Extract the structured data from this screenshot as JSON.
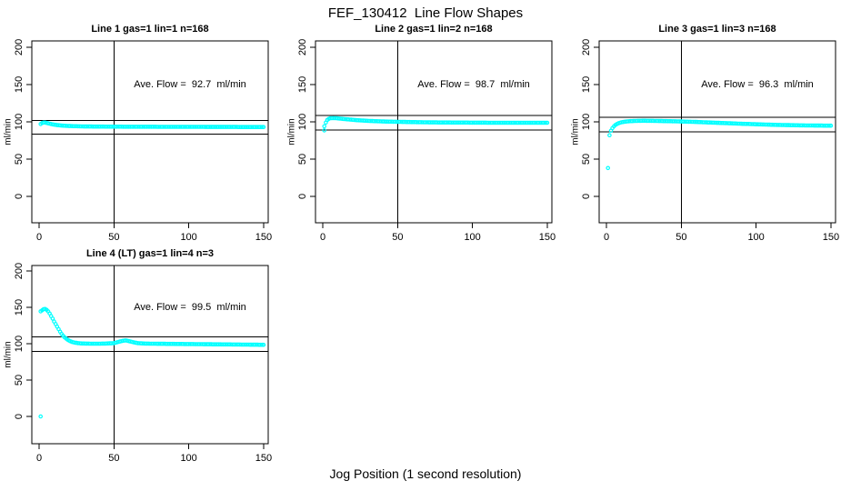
{
  "title": "FEF_130412  Line Flow Shapes",
  "xlabel": "Jog Position (1 second resolution)",
  "colors": {
    "points": "#00FFFF",
    "axis": "#000000",
    "background": "#FFFFFF"
  },
  "chart_data": [
    {
      "type": "scatter",
      "title": "Line 1 gas=1 lin=1 n=168",
      "annotation": "Ave. Flow =  92.7  ml/min",
      "ave_flow_ml_min": 92.7,
      "ylabel": "ml/min",
      "x_ticks": [
        0,
        50,
        100,
        150
      ],
      "y_ticks": [
        0,
        50,
        100,
        150,
        200
      ],
      "xlim": [
        -4.9,
        153.1
      ],
      "ylim": [
        -35.4,
        208.5
      ],
      "grid": false,
      "vline_x": 50,
      "hlines": [
        102.0,
        83.4
      ],
      "point_color": "#00FFFF",
      "points": [
        [
          1,
          97
        ],
        [
          2,
          98.5
        ],
        [
          3,
          99
        ],
        [
          4,
          99
        ],
        [
          5,
          98.5
        ],
        [
          6,
          98
        ],
        [
          8,
          97
        ],
        [
          10,
          96.2
        ],
        [
          12,
          95.6
        ],
        [
          15,
          95
        ],
        [
          18,
          94.6
        ],
        [
          22,
          94.2
        ],
        [
          26,
          94
        ],
        [
          30,
          93.8
        ],
        [
          35,
          93.7
        ],
        [
          40,
          93.6
        ],
        [
          50,
          93.5
        ],
        [
          60,
          93.4
        ],
        [
          70,
          93.4
        ],
        [
          80,
          93.3
        ],
        [
          90,
          93.3
        ],
        [
          100,
          93.2
        ],
        [
          110,
          93.2
        ],
        [
          120,
          93.1
        ],
        [
          130,
          93.1
        ],
        [
          140,
          93
        ],
        [
          150,
          93
        ]
      ],
      "extra_points": []
    },
    {
      "type": "scatter",
      "title": "Line 2 gas=1 lin=2 n=168",
      "annotation": "Ave. Flow =  98.7  ml/min",
      "ave_flow_ml_min": 98.7,
      "ylabel": "ml/min",
      "x_ticks": [
        0,
        50,
        100,
        150
      ],
      "y_ticks": [
        0,
        50,
        100,
        150,
        200
      ],
      "xlim": [
        -4.9,
        153.1
      ],
      "ylim": [
        -35.4,
        208.5
      ],
      "grid": false,
      "vline_x": 50,
      "hlines": [
        108.6,
        88.8
      ],
      "point_color": "#00FFFF",
      "points": [
        [
          1,
          94
        ],
        [
          2,
          99
        ],
        [
          3,
          102.5
        ],
        [
          4,
          104
        ],
        [
          5,
          104.8
        ],
        [
          7,
          105
        ],
        [
          9,
          104.8
        ],
        [
          11,
          104.4
        ],
        [
          13,
          104
        ],
        [
          15,
          103.6
        ],
        [
          18,
          103
        ],
        [
          21,
          102.5
        ],
        [
          24,
          102
        ],
        [
          28,
          101.5
        ],
        [
          32,
          101.1
        ],
        [
          36,
          100.8
        ],
        [
          40,
          100.5
        ],
        [
          45,
          100.2
        ],
        [
          50,
          100
        ],
        [
          55,
          99.8
        ],
        [
          60,
          99.6
        ],
        [
          70,
          99.3
        ],
        [
          80,
          99.1
        ],
        [
          90,
          99
        ],
        [
          100,
          98.9
        ],
        [
          110,
          98.8
        ],
        [
          120,
          98.8
        ],
        [
          130,
          98.7
        ],
        [
          140,
          98.7
        ],
        [
          150,
          98.7
        ]
      ],
      "extra_points": [
        [
          1,
          88.5
        ]
      ]
    },
    {
      "type": "scatter",
      "title": "Line 3 gas=1 lin=3 n=168",
      "annotation": "Ave. Flow =  96.3  ml/min",
      "ave_flow_ml_min": 96.3,
      "ylabel": "ml/min",
      "x_ticks": [
        0,
        50,
        100,
        150
      ],
      "y_ticks": [
        0,
        50,
        100,
        150,
        200
      ],
      "xlim": [
        -4.9,
        153.1
      ],
      "ylim": [
        -35.4,
        208.5
      ],
      "grid": false,
      "vline_x": 50,
      "hlines": [
        105.9,
        86.7
      ],
      "point_color": "#00FFFF",
      "points": [
        [
          1,
          38
        ],
        [
          2,
          82
        ],
        [
          3,
          88
        ],
        [
          4,
          91.5
        ],
        [
          5,
          94
        ],
        [
          6,
          95.8
        ],
        [
          7,
          97
        ],
        [
          8,
          98
        ],
        [
          9,
          98.7
        ],
        [
          10,
          99.3
        ],
        [
          12,
          100.1
        ],
        [
          14,
          100.6
        ],
        [
          16,
          100.9
        ],
        [
          18,
          101.1
        ],
        [
          21,
          101.3
        ],
        [
          25,
          101.4
        ],
        [
          30,
          101.3
        ],
        [
          35,
          101.1
        ],
        [
          40,
          100.9
        ],
        [
          45,
          100.7
        ],
        [
          50,
          100.4
        ],
        [
          55,
          100.1
        ],
        [
          60,
          99.8
        ],
        [
          65,
          99.4
        ],
        [
          70,
          99
        ],
        [
          75,
          98.6
        ],
        [
          80,
          98.2
        ],
        [
          85,
          97.8
        ],
        [
          90,
          97.4
        ],
        [
          95,
          97.1
        ],
        [
          100,
          96.7
        ],
        [
          105,
          96.4
        ],
        [
          110,
          96.1
        ],
        [
          115,
          95.8
        ],
        [
          120,
          95.6
        ],
        [
          125,
          95.4
        ],
        [
          130,
          95.2
        ],
        [
          135,
          95.1
        ],
        [
          140,
          95
        ],
        [
          145,
          94.9
        ],
        [
          150,
          94.8
        ]
      ],
      "extra_points": []
    },
    {
      "type": "scatter",
      "title": "Line 4 (LT) gas=1 lin=4 n=3",
      "annotation": "Ave. Flow =  99.5  ml/min",
      "ave_flow_ml_min": 99.5,
      "ylabel": "ml/min",
      "x_ticks": [
        0,
        50,
        100,
        150
      ],
      "y_ticks": [
        0,
        50,
        100,
        150,
        200
      ],
      "xlim": [
        -4.9,
        153.1
      ],
      "ylim": [
        -37.5,
        207.5
      ],
      "grid": false,
      "vline_x": 50,
      "hlines": [
        109.5,
        89.6
      ],
      "point_color": "#00FFFF",
      "points": [
        [
          1,
          144.5
        ],
        [
          2,
          146
        ],
        [
          3,
          147.5
        ],
        [
          4,
          147.8
        ],
        [
          5,
          146.5
        ],
        [
          6,
          144.5
        ],
        [
          7,
          141.5
        ],
        [
          8,
          138
        ],
        [
          9,
          134.5
        ],
        [
          10,
          130.5
        ],
        [
          11,
          127
        ],
        [
          12,
          123.5
        ],
        [
          13,
          120
        ],
        [
          14,
          116.5
        ],
        [
          15,
          113.5
        ],
        [
          16,
          111
        ],
        [
          17,
          108.8
        ],
        [
          18,
          107
        ],
        [
          19,
          105.5
        ],
        [
          20,
          104.2
        ],
        [
          21,
          103.2
        ],
        [
          22,
          102.4
        ],
        [
          24,
          101.4
        ],
        [
          26,
          100.8
        ],
        [
          28,
          100.4
        ],
        [
          30,
          100.2
        ],
        [
          35,
          100
        ],
        [
          40,
          100
        ],
        [
          45,
          100.2
        ],
        [
          50,
          100.8
        ],
        [
          53,
          102.5
        ],
        [
          56,
          104
        ],
        [
          58,
          104.5
        ],
        [
          60,
          103.5
        ],
        [
          62,
          102.5
        ],
        [
          64,
          101.5
        ],
        [
          66,
          100.8
        ],
        [
          70,
          100.2
        ],
        [
          75,
          100
        ],
        [
          80,
          99.9
        ],
        [
          90,
          99.7
        ],
        [
          100,
          99.5
        ],
        [
          110,
          99.3
        ],
        [
          120,
          99.1
        ],
        [
          130,
          98.9
        ],
        [
          140,
          98.7
        ],
        [
          150,
          98.5
        ]
      ],
      "extra_points": [
        [
          1,
          0
        ]
      ]
    }
  ]
}
